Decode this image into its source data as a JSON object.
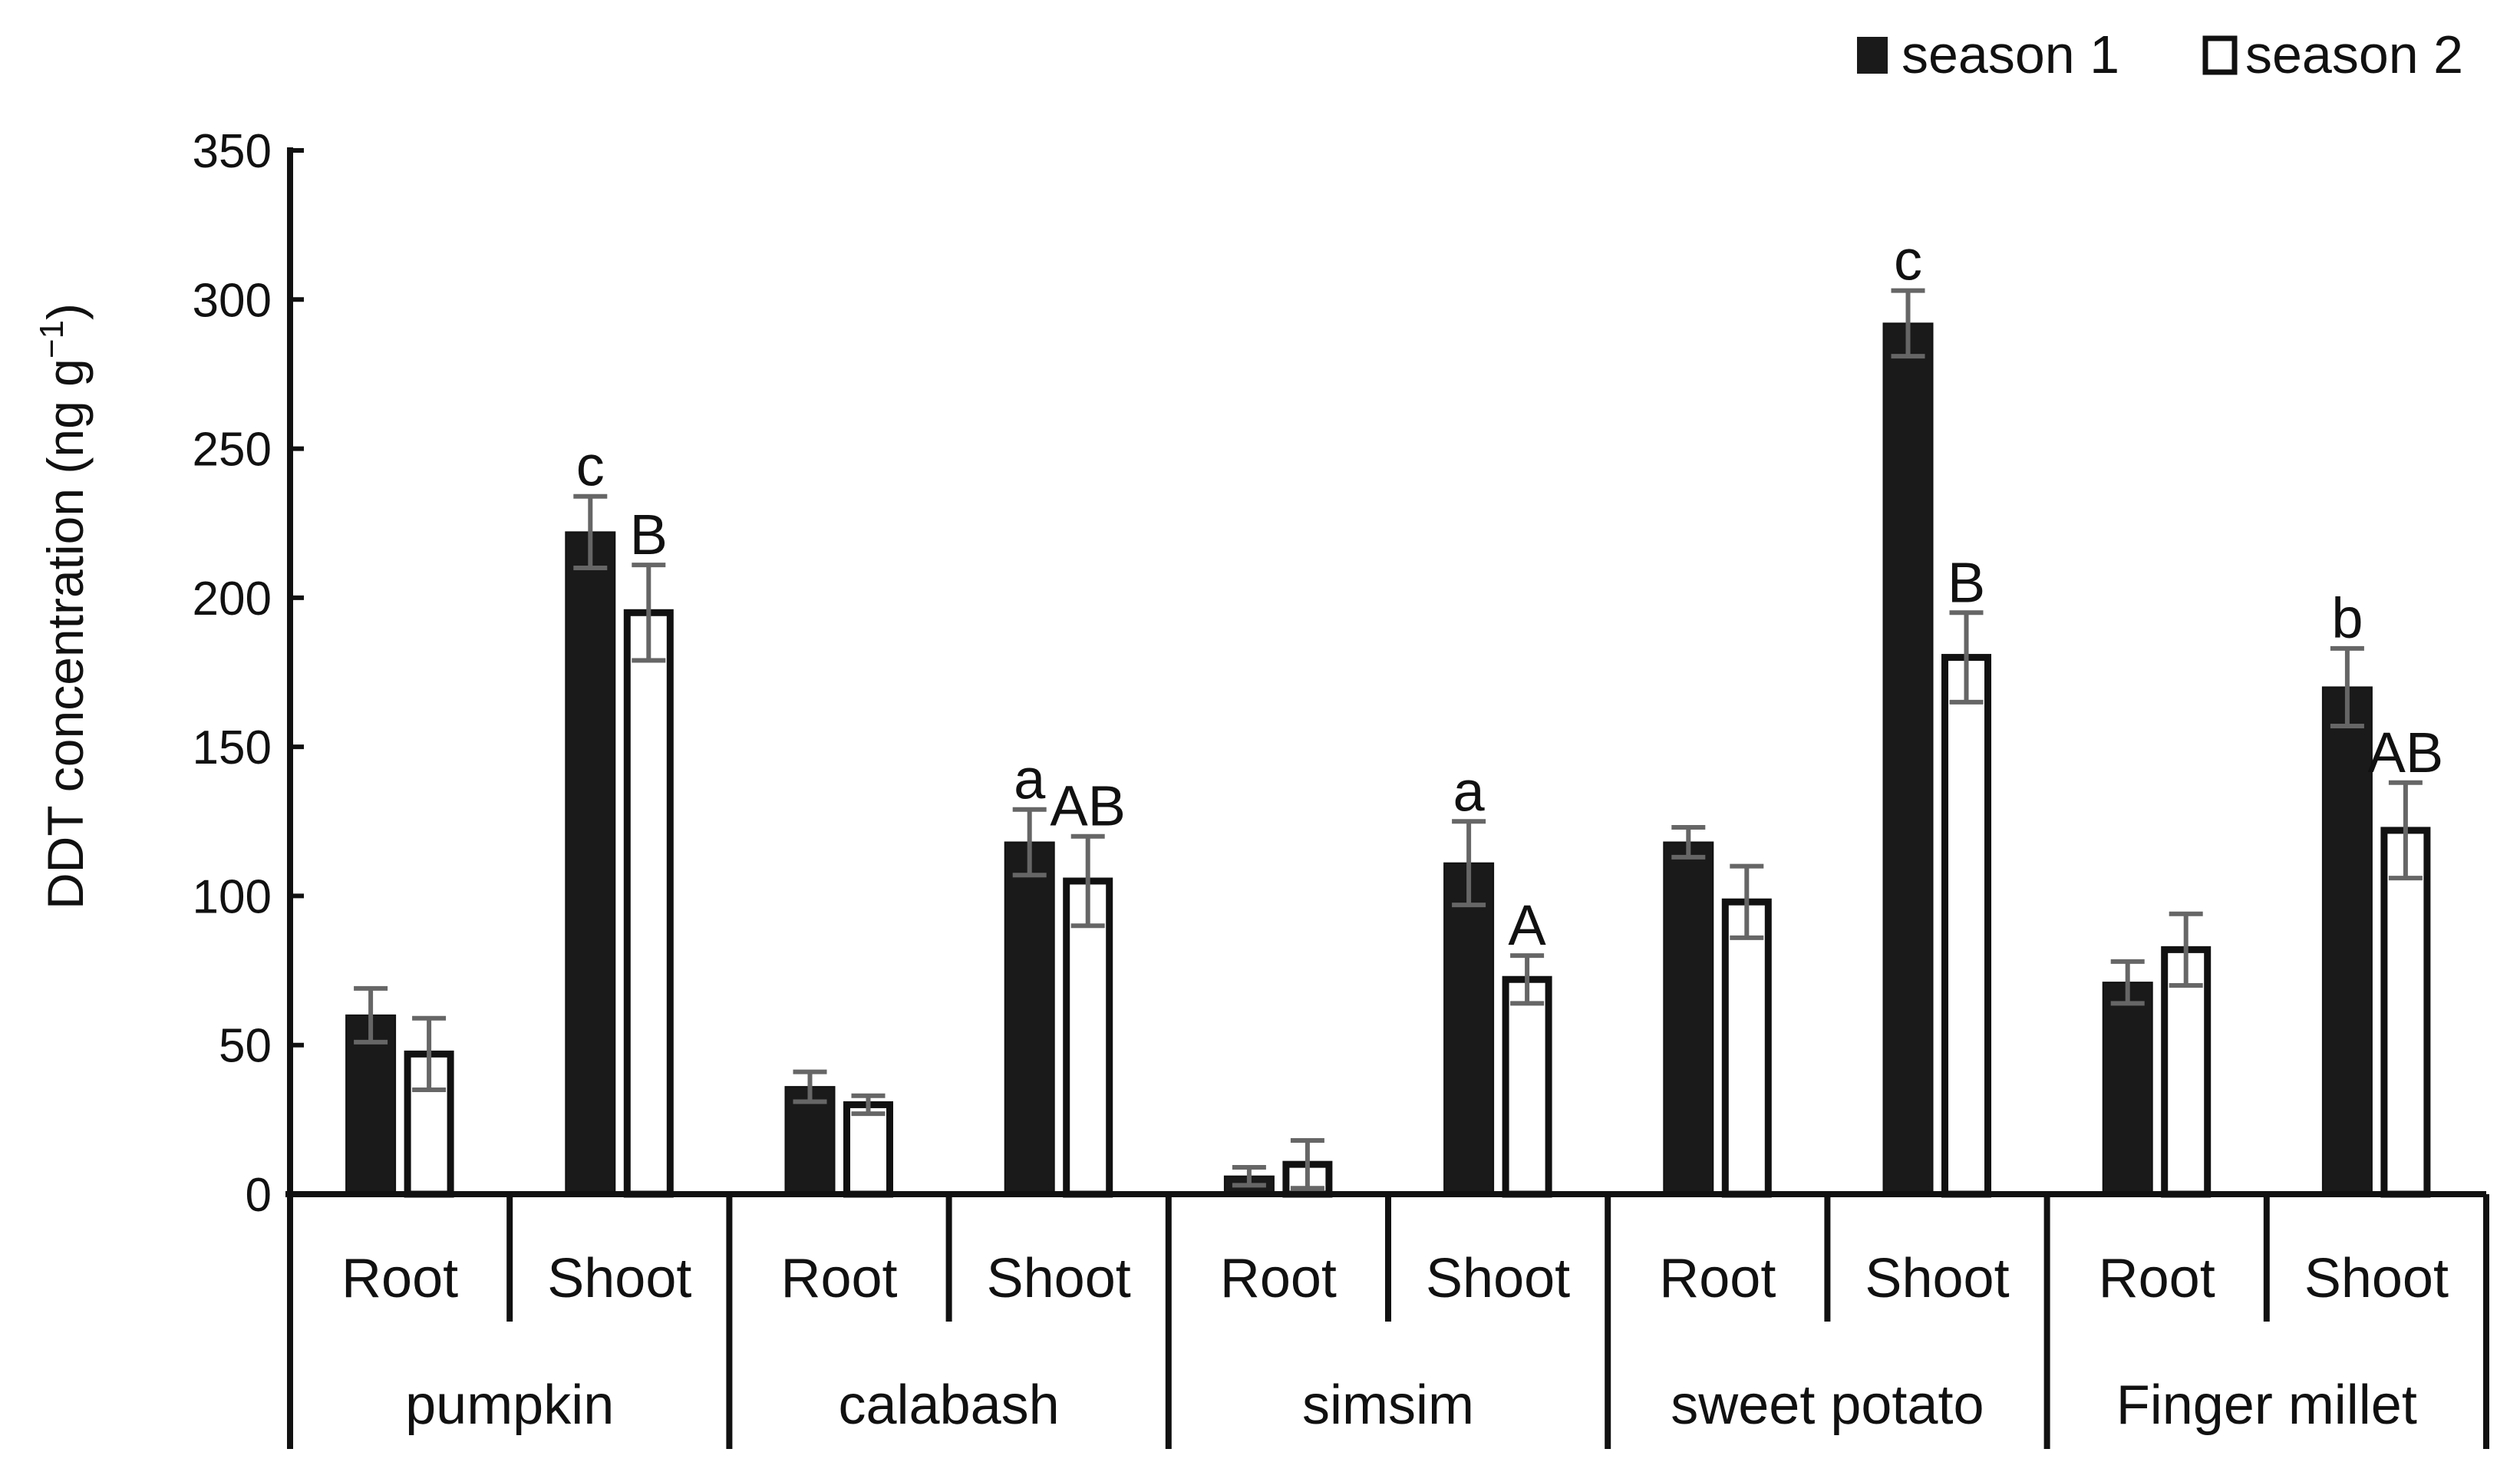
{
  "chart_data": {
    "type": "bar",
    "ylabel": "DDT concentration (ng g",
    "ylabel_sup": "−1",
    "ylabel_close": ")",
    "xlabel": "",
    "ylim": [
      0,
      350
    ],
    "yticks": [
      0,
      50,
      100,
      150,
      200,
      250,
      300,
      350
    ],
    "ytick_labels": [
      "0",
      "50",
      "100",
      "150",
      "200",
      "250",
      "300",
      "350"
    ],
    "gridlines": false,
    "legend_position": "top-right",
    "groups": [
      "pumpkin",
      "calabash",
      "simsim",
      "sweet potato",
      "Finger millet"
    ],
    "subcategories": [
      "Root",
      "Shoot"
    ],
    "categories": [
      "Root",
      "Shoot",
      "Root",
      "Shoot",
      "Root",
      "Shoot",
      "Root",
      "Shoot",
      "Root",
      "Shoot"
    ],
    "series": [
      {
        "name": "season 1",
        "color": "#1a1a1a",
        "values": [
          60,
          222,
          36,
          118,
          6,
          111,
          118,
          292,
          71,
          170
        ],
        "errors": [
          9,
          12,
          5,
          11,
          3,
          14,
          5,
          11,
          7,
          13
        ],
        "labels": [
          "",
          "c",
          "",
          "a",
          "",
          "a",
          "",
          "c",
          "",
          "b"
        ]
      },
      {
        "name": "season 2",
        "color": "#ffffff",
        "values": [
          47,
          195,
          30,
          105,
          10,
          72,
          98,
          180,
          82,
          122
        ],
        "errors": [
          12,
          16,
          3,
          15,
          8,
          8,
          12,
          15,
          12,
          16
        ],
        "labels": [
          "",
          "B",
          "",
          "AB",
          "",
          "A",
          "",
          "B",
          "",
          "AB"
        ]
      }
    ]
  }
}
